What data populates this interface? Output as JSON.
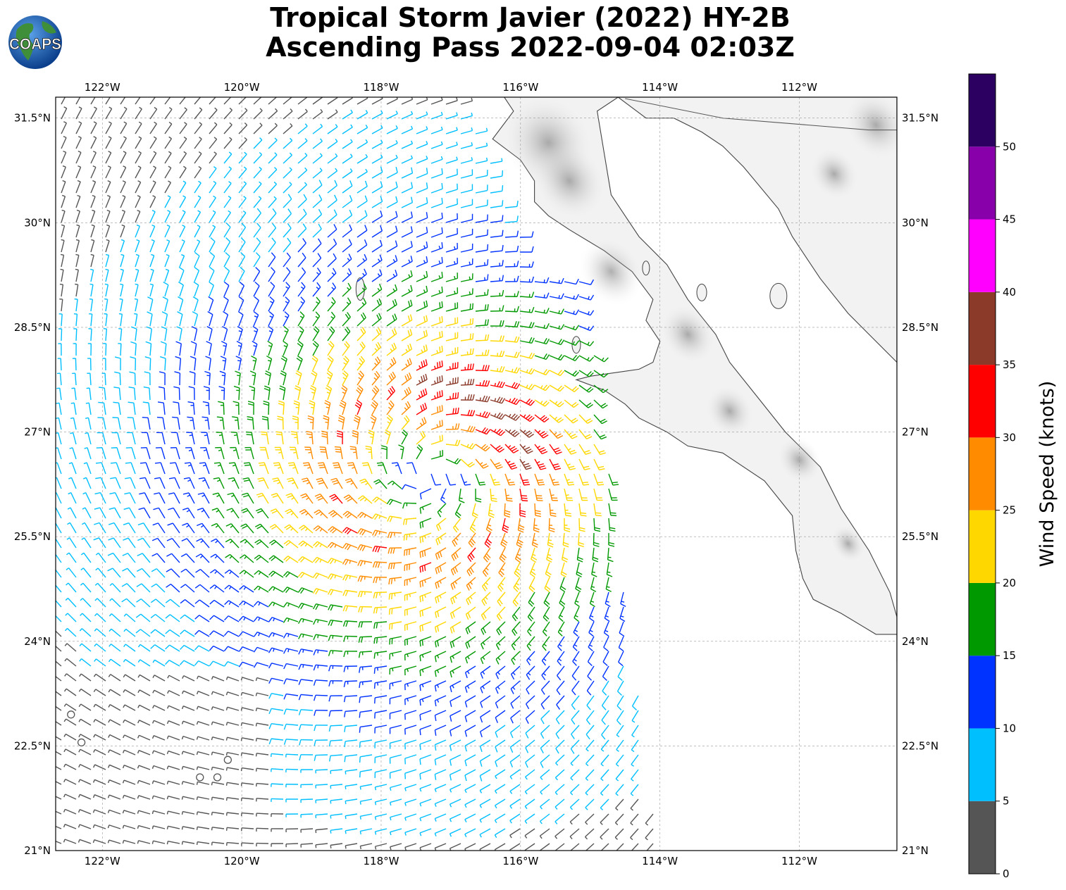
{
  "title": {
    "line1": "Tropical Storm Javier (2022) HY-2B",
    "line2": "Ascending Pass 2022-09-04 02:03Z"
  },
  "logo": {
    "text": "COAPS",
    "icon": "globe-icon"
  },
  "map": {
    "lon_range": [
      -122.67,
      -110.6
    ],
    "lat_range": [
      21.0,
      31.8
    ],
    "lon_ticks": [
      {
        "value": -122,
        "label": "122°W"
      },
      {
        "value": -120,
        "label": "120°W"
      },
      {
        "value": -118,
        "label": "118°W"
      },
      {
        "value": -116,
        "label": "116°W"
      },
      {
        "value": -114,
        "label": "114°W"
      },
      {
        "value": -112,
        "label": "112°W"
      }
    ],
    "lat_ticks": [
      {
        "value": 31.5,
        "label": "31.5°N"
      },
      {
        "value": 30,
        "label": "30°N"
      },
      {
        "value": 28.5,
        "label": "28.5°N"
      },
      {
        "value": 27,
        "label": "27°N"
      },
      {
        "value": 25.5,
        "label": "25.5°N"
      },
      {
        "value": 24,
        "label": "24°N"
      },
      {
        "value": 22.5,
        "label": "22.5°N"
      },
      {
        "value": 21,
        "label": "21°N"
      }
    ],
    "gridlines": true,
    "storm_center": {
      "lon": -117.3,
      "lat": 26.4
    },
    "land_color": "#f2f2f2",
    "coast_color": "#444444"
  },
  "colorbar": {
    "label": "Wind Speed (knots)",
    "bins": [
      {
        "min": 0,
        "max": 5,
        "color": "#555555"
      },
      {
        "min": 5,
        "max": 10,
        "color": "#00bfff"
      },
      {
        "min": 10,
        "max": 15,
        "color": "#0033ff"
      },
      {
        "min": 15,
        "max": 20,
        "color": "#009900"
      },
      {
        "min": 20,
        "max": 25,
        "color": "#ffd700"
      },
      {
        "min": 25,
        "max": 30,
        "color": "#ff8c00"
      },
      {
        "min": 30,
        "max": 35,
        "color": "#ff0000"
      },
      {
        "min": 35,
        "max": 40,
        "color": "#8b3a2a"
      },
      {
        "min": 40,
        "max": 45,
        "color": "#ff00ff"
      },
      {
        "min": 45,
        "max": 50,
        "color": "#8800aa"
      },
      {
        "min": 50,
        "max": 55,
        "color": "#2b0060"
      }
    ],
    "ticks": [
      "0",
      "5",
      "10",
      "15",
      "20",
      "25",
      "30",
      "35",
      "40",
      "45",
      "50"
    ]
  }
}
